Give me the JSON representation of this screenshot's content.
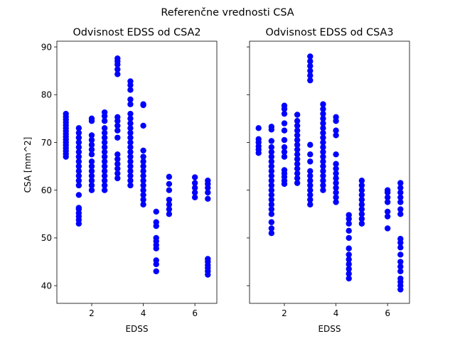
{
  "figure": {
    "suptitle": "Referenčne vrednosti CSA"
  },
  "chart_data": [
    {
      "type": "scatter",
      "title": "Odvisnost EDSS od CSA2",
      "xlabel": "EDSS",
      "ylabel": "CSA [mm^2]",
      "xlim": [
        0.65,
        6.85
      ],
      "ylim": [
        36.3,
        91.2
      ],
      "xticks": [
        2,
        4,
        6
      ],
      "yticks": [
        40,
        50,
        60,
        70,
        80,
        90
      ],
      "color": "#0000ff",
      "marker": "o",
      "grid": false,
      "groups": [
        {
          "x": 1.0,
          "y": [
            67.0,
            67.6,
            68.2,
            68.8,
            69.4,
            70.0,
            70.6,
            71.2,
            71.8,
            72.4,
            73.0,
            73.6,
            74.2,
            74.8,
            75.4,
            76.0
          ]
        },
        {
          "x": 1.5,
          "y": [
            53.0,
            53.8,
            54.5,
            55.2,
            56.0,
            56.3,
            59.0,
            61.0,
            62.0,
            63.0,
            64.0,
            65.0,
            66.0,
            67.0,
            68.0,
            69.0,
            70.0,
            71.0,
            72.0,
            73.0
          ]
        },
        {
          "x": 2.0,
          "y": [
            60.0,
            61.0,
            62.0,
            63.0,
            64.0,
            65.0,
            66.0,
            67.5,
            68.5,
            69.5,
            70.5,
            71.5,
            74.5,
            75.0
          ]
        },
        {
          "x": 2.5,
          "y": [
            60.0,
            61.0,
            62.0,
            63.0,
            64.0,
            65.0,
            66.0,
            67.0,
            68.0,
            69.0,
            70.0,
            71.0,
            72.0,
            73.0,
            74.5,
            75.5,
            76.3
          ]
        },
        {
          "x": 3.0,
          "y": [
            62.5,
            63.5,
            64.5,
            65.5,
            66.5,
            67.5,
            71.0,
            72.5,
            73.5,
            74.5,
            75.3,
            84.3,
            85.3,
            86.3,
            87.0,
            87.6
          ]
        },
        {
          "x": 3.5,
          "y": [
            61.0,
            62.0,
            63.0,
            64.0,
            65.0,
            66.0,
            67.0,
            68.0,
            69.0,
            70.0,
            71.0,
            72.0,
            73.0,
            74.0,
            75.0,
            76.0,
            78.0,
            79.0,
            81.0,
            82.0,
            82.8
          ]
        },
        {
          "x": 4.0,
          "y": [
            57.0,
            58.0,
            59.0,
            60.0,
            61.0,
            62.0,
            63.0,
            64.0,
            65.0,
            66.0,
            67.0,
            68.3,
            73.5,
            77.8,
            78.0
          ]
        },
        {
          "x": 4.5,
          "y": [
            43.0,
            44.5,
            45.3,
            47.8,
            48.5,
            49.3,
            50.0,
            52.5,
            53.3,
            55.5
          ]
        },
        {
          "x": 5.0,
          "y": [
            55.0,
            56.0,
            57.0,
            58.0,
            60.0,
            61.3,
            62.8
          ]
        },
        {
          "x": 6.0,
          "y": [
            58.5,
            59.5,
            60.5,
            61.5,
            62.7
          ]
        },
        {
          "x": 6.5,
          "y": [
            42.3,
            43.0,
            43.7,
            44.3,
            45.0,
            45.6,
            58.2,
            59.5,
            60.5,
            61.3,
            62.0
          ]
        }
      ]
    },
    {
      "type": "scatter",
      "title": "Odvisnost EDSS od CSA3",
      "xlabel": "EDSS",
      "ylabel": "",
      "xlim": [
        0.65,
        6.85
      ],
      "ylim": [
        36.3,
        91.2
      ],
      "xticks": [
        2,
        4,
        6
      ],
      "yticks": [
        40,
        50,
        60,
        70,
        80,
        90
      ],
      "sharey": true,
      "color": "#0000ff",
      "marker": "o",
      "grid": false,
      "groups": [
        {
          "x": 1.0,
          "y": [
            67.8,
            68.5,
            69.2,
            70.0,
            70.7,
            73.0
          ]
        },
        {
          "x": 1.5,
          "y": [
            51.0,
            52.0,
            53.3,
            55.0,
            56.0,
            57.0,
            58.0,
            59.0,
            60.0,
            61.0,
            62.0,
            63.0,
            64.0,
            65.0,
            66.0,
            67.0,
            68.0,
            69.0,
            70.3,
            72.7,
            73.3
          ]
        },
        {
          "x": 2.0,
          "y": [
            61.3,
            62.0,
            62.8,
            63.5,
            64.2,
            67.0,
            68.0,
            69.0,
            70.5,
            72.5,
            74.0,
            76.0,
            77.0,
            77.7
          ]
        },
        {
          "x": 2.5,
          "y": [
            61.5,
            62.5,
            63.5,
            64.5,
            65.5,
            66.5,
            67.5,
            68.5,
            69.5,
            70.5,
            71.5,
            72.5,
            73.5,
            74.5,
            75.8
          ]
        },
        {
          "x": 3.0,
          "y": [
            57.0,
            58.0,
            59.0,
            60.0,
            61.0,
            62.0,
            63.0,
            64.0,
            66.0,
            67.5,
            69.5,
            83.0,
            84.0,
            85.0,
            86.0,
            87.0,
            88.0
          ]
        },
        {
          "x": 3.5,
          "y": [
            60.0,
            61.0,
            62.0,
            63.0,
            64.0,
            65.0,
            66.0,
            67.0,
            68.0,
            69.0,
            70.0,
            71.0,
            72.0,
            73.0,
            74.0,
            75.0,
            76.0,
            77.0,
            78.0
          ]
        },
        {
          "x": 4.0,
          "y": [
            57.5,
            58.5,
            59.5,
            60.5,
            61.5,
            62.5,
            63.5,
            64.5,
            65.5,
            67.5,
            71.5,
            72.5,
            74.5,
            75.3
          ]
        },
        {
          "x": 4.5,
          "y": [
            41.5,
            42.5,
            43.5,
            44.5,
            45.5,
            46.5,
            47.8,
            50.0,
            51.5,
            53.0,
            54.0,
            54.8
          ]
        },
        {
          "x": 5.0,
          "y": [
            53.0,
            54.0,
            55.0,
            56.0,
            57.0,
            58.0,
            59.0,
            60.0,
            61.0,
            62.0
          ]
        },
        {
          "x": 6.0,
          "y": [
            52.0,
            54.5,
            55.5,
            57.5,
            58.5,
            59.5,
            60.0
          ]
        },
        {
          "x": 6.5,
          "y": [
            39.2,
            40.0,
            40.8,
            41.5,
            43.0,
            44.0,
            45.0,
            46.5,
            48.0,
            49.0,
            49.8,
            55.0,
            56.0,
            57.5,
            58.5,
            59.5,
            60.5,
            61.5
          ]
        }
      ]
    }
  ]
}
